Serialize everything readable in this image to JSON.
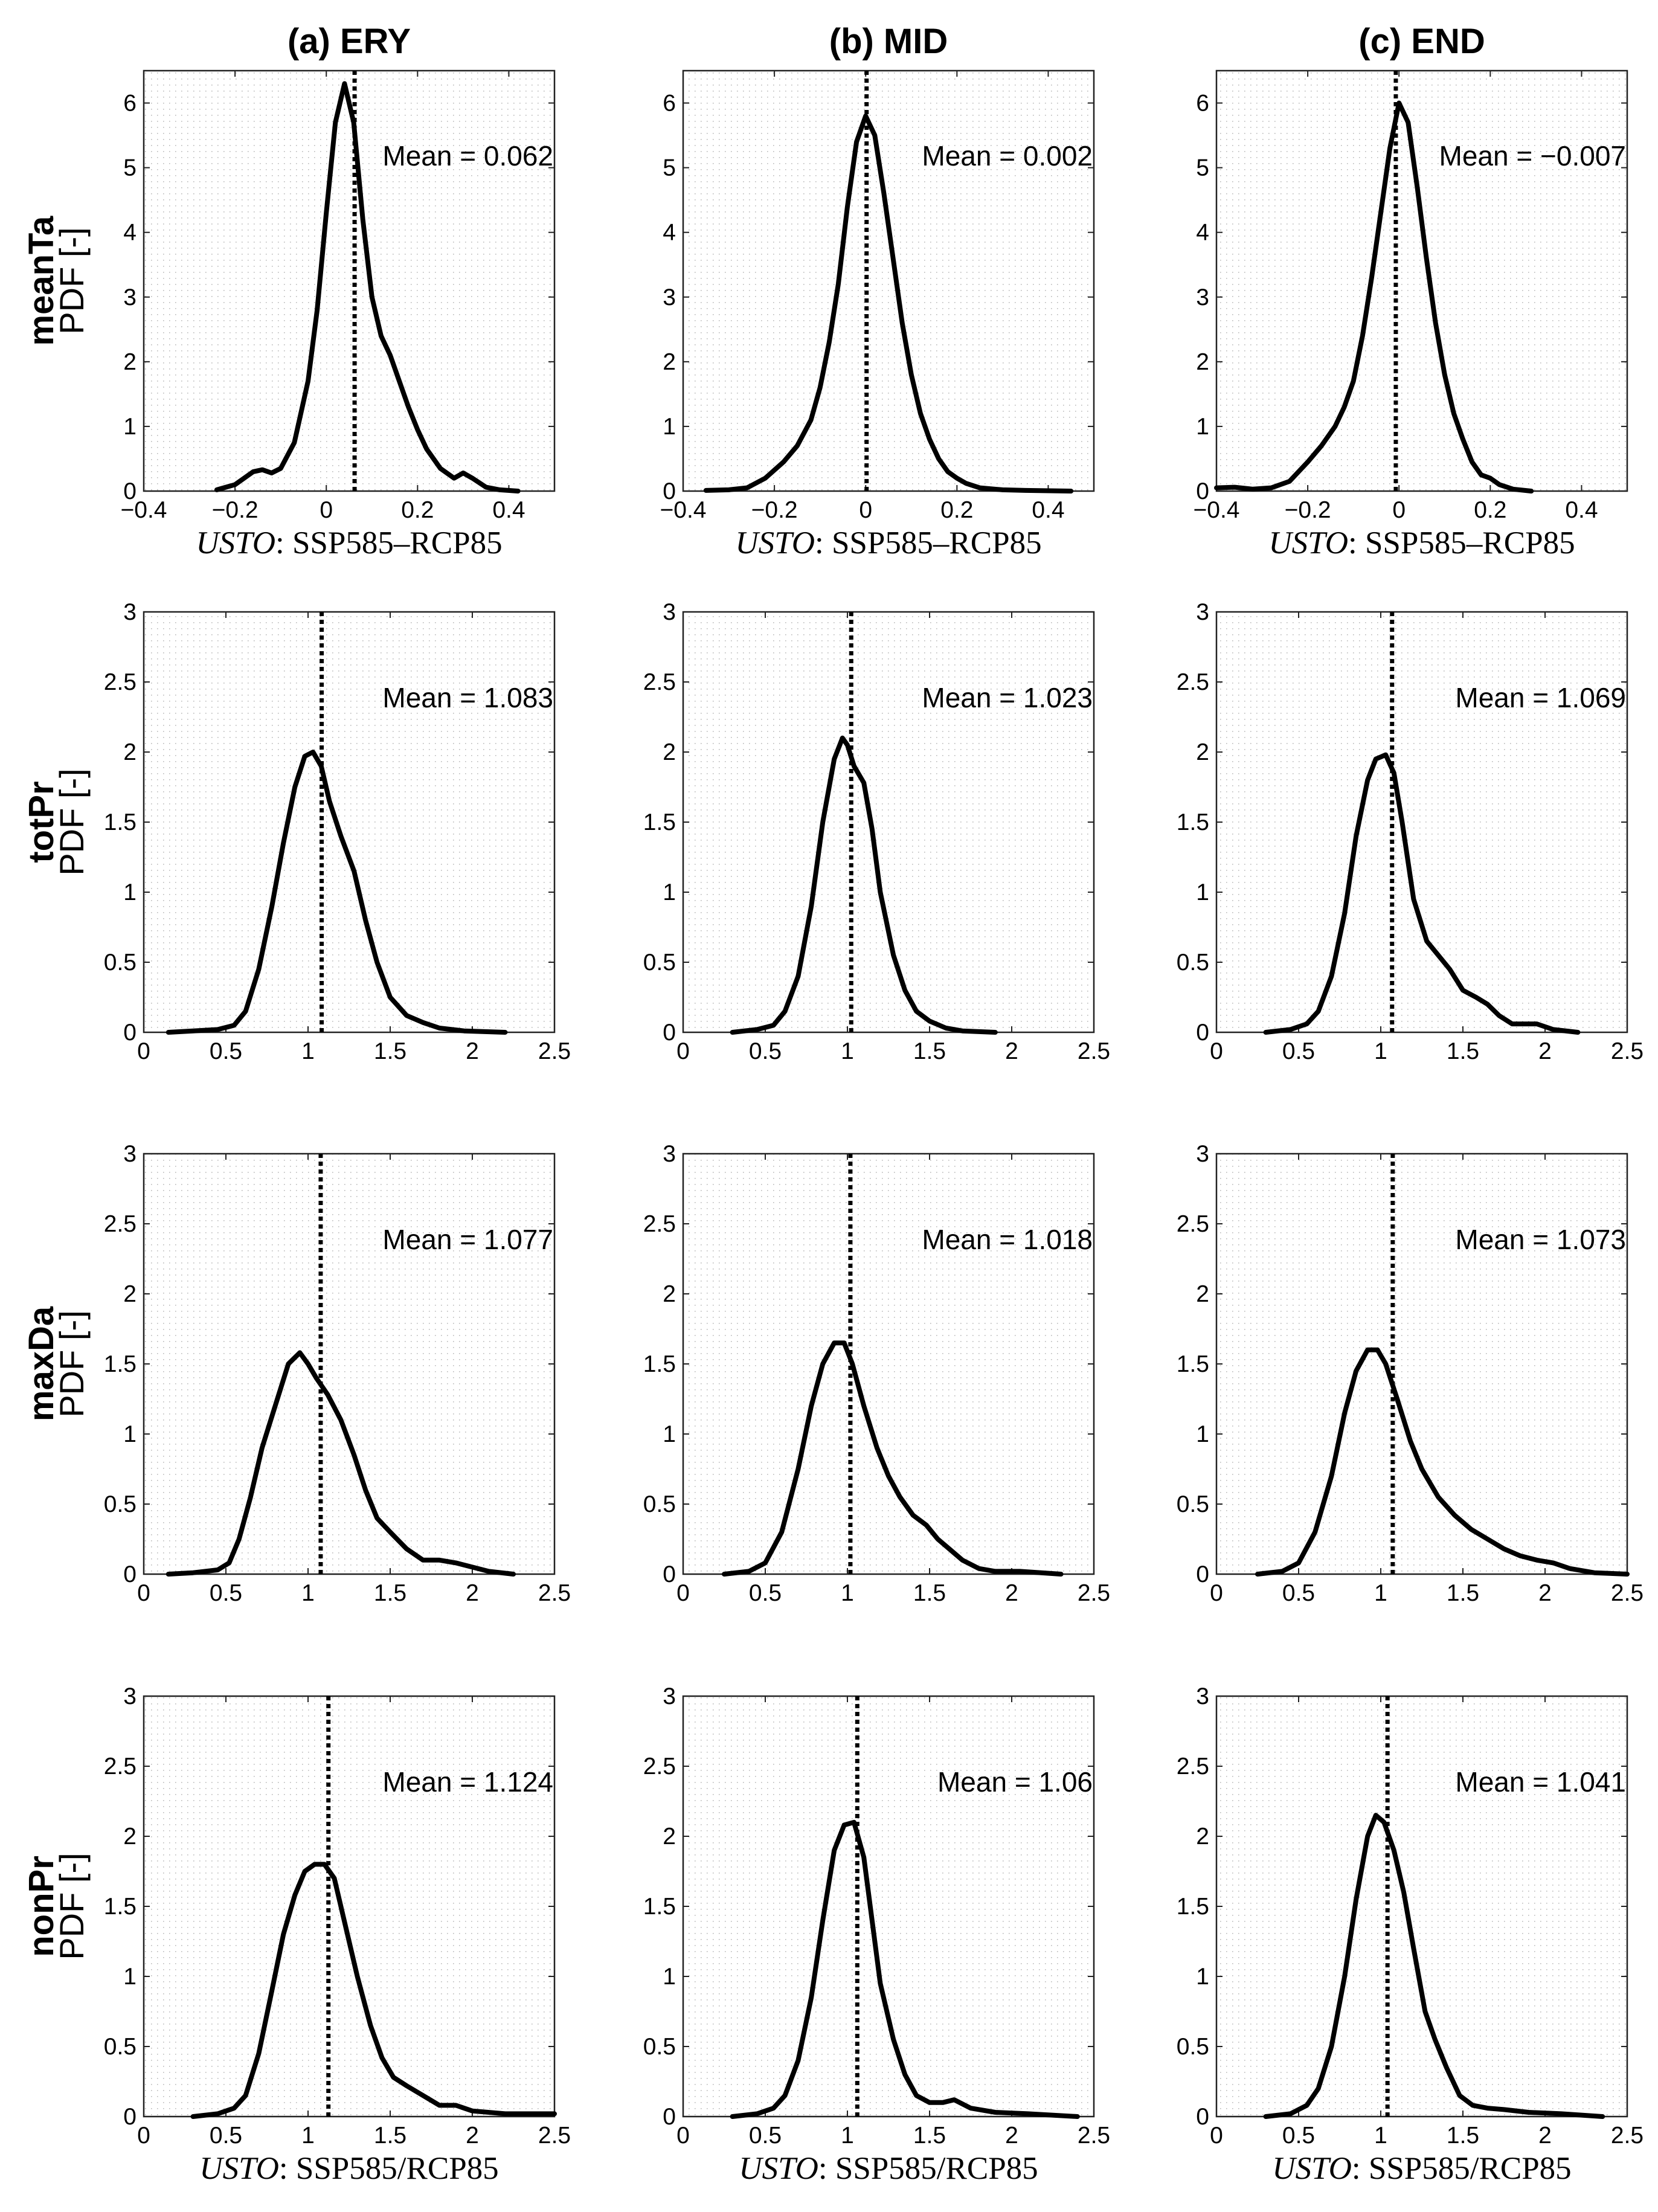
{
  "chart_data": {
    "type": "line",
    "column_titles": [
      "(a) ERY",
      "(b) MID",
      "(c) END"
    ],
    "row_variables": [
      "meanTa",
      "totPr",
      "maxDa",
      "nonPr"
    ],
    "ylabel": "PDF [-]",
    "xlabel_top": {
      "italic": "USTO",
      "rest": ": SSP585–RCP85"
    },
    "xlabel_bottom": {
      "italic": "USTO",
      "rest": ": SSP585/RCP85"
    },
    "rows": [
      {
        "variable": "meanTa",
        "xlim": [
          -0.4,
          0.5
        ],
        "ylim": [
          0,
          6.5
        ],
        "xticks": [
          -0.4,
          -0.2,
          0,
          0.2,
          0.4
        ],
        "xtick_labels": [
          "−0.4",
          "−0.2",
          "0",
          "0.2",
          "0.4"
        ],
        "yticks": [
          0,
          1,
          2,
          3,
          4,
          5,
          6
        ],
        "ytick_labels": [
          "0",
          "1",
          "2",
          "3",
          "4",
          "5",
          "6"
        ],
        "panels": [
          {
            "mean_label": "Mean = 0.062",
            "mean": 0.062,
            "x": [
              -0.24,
              -0.2,
              -0.16,
              -0.14,
              -0.12,
              -0.1,
              -0.07,
              -0.04,
              -0.02,
              0.0,
              0.02,
              0.04,
              0.06,
              0.08,
              0.1,
              0.12,
              0.14,
              0.16,
              0.18,
              0.2,
              0.22,
              0.25,
              0.28,
              0.3,
              0.32,
              0.35,
              0.38,
              0.42
            ],
            "y": [
              0.02,
              0.1,
              0.3,
              0.33,
              0.28,
              0.35,
              0.75,
              1.7,
              2.8,
              4.3,
              5.7,
              6.3,
              5.7,
              4.2,
              3.0,
              2.4,
              2.1,
              1.7,
              1.3,
              0.95,
              0.65,
              0.35,
              0.2,
              0.28,
              0.2,
              0.06,
              0.02,
              0.0
            ]
          },
          {
            "mean_label": "Mean = 0.002",
            "mean": 0.002,
            "x": [
              -0.35,
              -0.3,
              -0.26,
              -0.22,
              -0.18,
              -0.15,
              -0.12,
              -0.1,
              -0.08,
              -0.06,
              -0.04,
              -0.02,
              0.0,
              0.02,
              0.04,
              0.06,
              0.08,
              0.1,
              0.12,
              0.14,
              0.16,
              0.18,
              0.2,
              0.22,
              0.25,
              0.3,
              0.35,
              0.45
            ],
            "y": [
              0.01,
              0.02,
              0.05,
              0.2,
              0.45,
              0.7,
              1.1,
              1.6,
              2.3,
              3.2,
              4.4,
              5.4,
              5.8,
              5.5,
              4.6,
              3.6,
              2.6,
              1.8,
              1.2,
              0.8,
              0.5,
              0.3,
              0.2,
              0.12,
              0.05,
              0.02,
              0.01,
              0.0
            ]
          },
          {
            "mean_label": "Mean = −0.007",
            "mean": -0.007,
            "x": [
              -0.4,
              -0.36,
              -0.32,
              -0.28,
              -0.24,
              -0.2,
              -0.17,
              -0.14,
              -0.12,
              -0.1,
              -0.08,
              -0.06,
              -0.04,
              -0.02,
              0.0,
              0.02,
              0.04,
              0.06,
              0.08,
              0.1,
              0.12,
              0.14,
              0.16,
              0.18,
              0.2,
              0.22,
              0.25,
              0.29
            ],
            "y": [
              0.05,
              0.06,
              0.03,
              0.05,
              0.15,
              0.45,
              0.7,
              1.0,
              1.3,
              1.7,
              2.4,
              3.3,
              4.3,
              5.3,
              6.0,
              5.7,
              4.7,
              3.6,
              2.6,
              1.8,
              1.2,
              0.8,
              0.45,
              0.25,
              0.2,
              0.1,
              0.03,
              0.0
            ]
          }
        ]
      },
      {
        "variable": "totPr",
        "xlim": [
          0,
          2.5
        ],
        "ylim": [
          0,
          3
        ],
        "xticks": [
          0,
          0.5,
          1,
          1.5,
          2,
          2.5
        ],
        "xtick_labels": [
          "0",
          "0.5",
          "1",
          "1.5",
          "2",
          "2.5"
        ],
        "yticks": [
          0,
          0.5,
          1,
          1.5,
          2,
          2.5,
          3
        ],
        "ytick_labels": [
          "0",
          "0.5",
          "1",
          "1.5",
          "2",
          "2.5",
          "3"
        ],
        "panels": [
          {
            "mean_label": "Mean = 1.083",
            "mean": 1.083,
            "x": [
              0.15,
              0.3,
              0.45,
              0.55,
              0.62,
              0.7,
              0.78,
              0.85,
              0.92,
              0.98,
              1.03,
              1.08,
              1.13,
              1.2,
              1.28,
              1.35,
              1.42,
              1.5,
              1.6,
              1.7,
              1.8,
              1.95,
              2.2
            ],
            "y": [
              0.0,
              0.01,
              0.02,
              0.05,
              0.15,
              0.45,
              0.9,
              1.35,
              1.75,
              1.97,
              2.0,
              1.9,
              1.65,
              1.4,
              1.15,
              0.8,
              0.5,
              0.25,
              0.12,
              0.07,
              0.03,
              0.01,
              0.0
            ]
          },
          {
            "mean_label": "Mean = 1.023",
            "mean": 1.023,
            "x": [
              0.3,
              0.45,
              0.55,
              0.62,
              0.7,
              0.78,
              0.85,
              0.92,
              0.97,
              1.0,
              1.04,
              1.1,
              1.15,
              1.2,
              1.28,
              1.35,
              1.42,
              1.5,
              1.6,
              1.7,
              1.9
            ],
            "y": [
              0.0,
              0.02,
              0.05,
              0.15,
              0.4,
              0.9,
              1.5,
              1.95,
              2.1,
              2.05,
              1.9,
              1.78,
              1.45,
              1.0,
              0.55,
              0.3,
              0.15,
              0.08,
              0.03,
              0.01,
              0.0
            ]
          },
          {
            "mean_label": "Mean = 1.069",
            "mean": 1.069,
            "x": [
              0.3,
              0.45,
              0.55,
              0.62,
              0.7,
              0.78,
              0.85,
              0.92,
              0.97,
              1.03,
              1.08,
              1.13,
              1.2,
              1.28,
              1.35,
              1.42,
              1.5,
              1.58,
              1.65,
              1.72,
              1.8,
              1.95,
              2.05,
              2.2
            ],
            "y": [
              0.0,
              0.02,
              0.06,
              0.15,
              0.4,
              0.85,
              1.4,
              1.8,
              1.95,
              1.98,
              1.85,
              1.5,
              0.95,
              0.65,
              0.55,
              0.45,
              0.3,
              0.25,
              0.2,
              0.12,
              0.06,
              0.06,
              0.02,
              0.0
            ]
          }
        ]
      },
      {
        "variable": "maxDa",
        "xlim": [
          0,
          2.5
        ],
        "ylim": [
          0,
          3
        ],
        "xticks": [
          0,
          0.5,
          1,
          1.5,
          2,
          2.5
        ],
        "xtick_labels": [
          "0",
          "0.5",
          "1",
          "1.5",
          "2",
          "2.5"
        ],
        "yticks": [
          0,
          0.5,
          1,
          1.5,
          2,
          2.5,
          3
        ],
        "ytick_labels": [
          "0",
          "0.5",
          "1",
          "1.5",
          "2",
          "2.5",
          "3"
        ],
        "panels": [
          {
            "mean_label": "Mean = 1.077",
            "mean": 1.077,
            "x": [
              0.15,
              0.3,
              0.45,
              0.52,
              0.58,
              0.65,
              0.72,
              0.8,
              0.88,
              0.95,
              1.0,
              1.05,
              1.12,
              1.2,
              1.28,
              1.35,
              1.42,
              1.5,
              1.6,
              1.7,
              1.8,
              1.9,
              2.0,
              2.1,
              2.25
            ],
            "y": [
              0.0,
              0.01,
              0.03,
              0.08,
              0.25,
              0.55,
              0.9,
              1.2,
              1.5,
              1.58,
              1.5,
              1.4,
              1.28,
              1.1,
              0.85,
              0.6,
              0.4,
              0.3,
              0.18,
              0.1,
              0.1,
              0.08,
              0.05,
              0.02,
              0.0
            ]
          },
          {
            "mean_label": "Mean = 1.018",
            "mean": 1.018,
            "x": [
              0.25,
              0.4,
              0.5,
              0.6,
              0.7,
              0.78,
              0.85,
              0.92,
              0.98,
              1.03,
              1.1,
              1.18,
              1.25,
              1.32,
              1.4,
              1.48,
              1.55,
              1.62,
              1.7,
              1.8,
              1.9,
              2.05,
              2.3
            ],
            "y": [
              0.0,
              0.02,
              0.08,
              0.3,
              0.75,
              1.2,
              1.5,
              1.65,
              1.65,
              1.5,
              1.2,
              0.9,
              0.7,
              0.55,
              0.42,
              0.35,
              0.25,
              0.18,
              0.1,
              0.04,
              0.02,
              0.02,
              0.0
            ]
          },
          {
            "mean_label": "Mean = 1.073",
            "mean": 1.073,
            "x": [
              0.25,
              0.4,
              0.5,
              0.6,
              0.7,
              0.78,
              0.85,
              0.92,
              0.98,
              1.03,
              1.1,
              1.18,
              1.25,
              1.35,
              1.45,
              1.55,
              1.65,
              1.75,
              1.85,
              1.95,
              2.05,
              2.15,
              2.3,
              2.5
            ],
            "y": [
              0.0,
              0.02,
              0.08,
              0.3,
              0.7,
              1.15,
              1.45,
              1.6,
              1.6,
              1.5,
              1.25,
              0.95,
              0.75,
              0.55,
              0.42,
              0.32,
              0.25,
              0.18,
              0.13,
              0.1,
              0.08,
              0.04,
              0.01,
              0.0
            ]
          }
        ]
      },
      {
        "variable": "nonPr",
        "xlim": [
          0,
          2.5
        ],
        "ylim": [
          0,
          3
        ],
        "xticks": [
          0,
          0.5,
          1,
          1.5,
          2,
          2.5
        ],
        "xtick_labels": [
          "0",
          "0.5",
          "1",
          "1.5",
          "2",
          "2.5"
        ],
        "yticks": [
          0,
          0.5,
          1,
          1.5,
          2,
          2.5,
          3
        ],
        "ytick_labels": [
          "0",
          "0.5",
          "1",
          "1.5",
          "2",
          "2.5",
          "3"
        ],
        "panels": [
          {
            "mean_label": "Mean = 1.124",
            "mean": 1.124,
            "x": [
              0.3,
              0.45,
              0.55,
              0.62,
              0.7,
              0.78,
              0.85,
              0.92,
              0.98,
              1.04,
              1.1,
              1.16,
              1.22,
              1.3,
              1.38,
              1.45,
              1.52,
              1.6,
              1.7,
              1.8,
              1.9,
              2.0,
              2.2,
              2.5
            ],
            "y": [
              0.0,
              0.02,
              0.06,
              0.15,
              0.45,
              0.9,
              1.3,
              1.58,
              1.75,
              1.8,
              1.8,
              1.7,
              1.4,
              1.0,
              0.65,
              0.42,
              0.28,
              0.22,
              0.15,
              0.08,
              0.08,
              0.04,
              0.02,
              0.02
            ]
          },
          {
            "mean_label": "Mean = 1.06",
            "mean": 1.06,
            "x": [
              0.3,
              0.45,
              0.55,
              0.62,
              0.7,
              0.78,
              0.85,
              0.92,
              0.98,
              1.04,
              1.1,
              1.15,
              1.2,
              1.28,
              1.35,
              1.42,
              1.5,
              1.58,
              1.65,
              1.75,
              1.9,
              2.1,
              2.4
            ],
            "y": [
              0.0,
              0.02,
              0.06,
              0.15,
              0.4,
              0.85,
              1.4,
              1.9,
              2.08,
              2.1,
              1.85,
              1.4,
              0.95,
              0.55,
              0.3,
              0.15,
              0.1,
              0.1,
              0.12,
              0.06,
              0.03,
              0.02,
              0.0
            ]
          },
          {
            "mean_label": "Mean = 1.041",
            "mean": 1.041,
            "x": [
              0.3,
              0.45,
              0.55,
              0.62,
              0.7,
              0.78,
              0.85,
              0.92,
              0.97,
              1.02,
              1.08,
              1.14,
              1.2,
              1.27,
              1.33,
              1.4,
              1.48,
              1.56,
              1.65,
              1.75,
              1.9,
              2.1,
              2.35
            ],
            "y": [
              0.0,
              0.02,
              0.08,
              0.2,
              0.5,
              1.0,
              1.55,
              2.0,
              2.15,
              2.1,
              1.9,
              1.6,
              1.2,
              0.75,
              0.55,
              0.35,
              0.15,
              0.08,
              0.06,
              0.05,
              0.03,
              0.02,
              0.0
            ]
          }
        ]
      }
    ]
  }
}
